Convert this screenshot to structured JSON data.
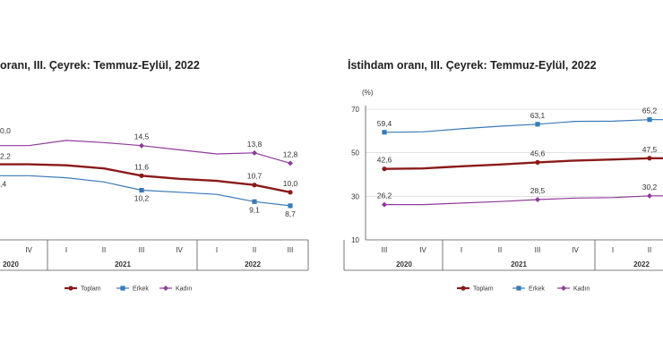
{
  "charts": [
    {
      "title": "oranı, III. Çeyrek: Temmuz-Eylül, 2022",
      "chart_data": {
        "type": "line",
        "categories": [
          "IV",
          "I",
          "II",
          "III",
          "IV",
          "I",
          "II",
          "III"
        ],
        "year_labels": [
          "2020",
          "2021",
          "2022"
        ],
        "series": [
          {
            "name": "Toplam",
            "color": "#8b1a1a",
            "values": [
              12.7,
              12.6,
              12.3,
              11.6,
              11.3,
              11.1,
              10.7,
              10.0
            ],
            "labels": [
              "",
              "",
              "",
              "11,6",
              "",
              "",
              "10,7",
              "10,0"
            ]
          },
          {
            "name": "Erkek",
            "color": "#3a7ab8",
            "values": [
              11.6,
              11.4,
              11.0,
              10.2,
              10.0,
              9.8,
              9.1,
              8.7
            ],
            "labels": [
              "",
              "",
              "",
              "10,2",
              "",
              "",
              "9,1",
              "8,7"
            ]
          },
          {
            "name": "Kadın",
            "color": "#8e3a9a",
            "values": [
              14.5,
              15.0,
              14.8,
              14.5,
              14.1,
              13.7,
              13.8,
              12.8
            ],
            "labels": [
              "",
              "",
              "",
              "14,5",
              "",
              "",
              "13,8",
              "12,8"
            ]
          }
        ],
        "edge_labels": [
          "0,0",
          "2,2",
          ",4"
        ]
      }
    },
    {
      "title": "İstihdam oranı, III. Çeyrek: Temmuz-Eylül, 2022",
      "chart_data": {
        "type": "line",
        "ylabel": "(%)",
        "yticks": [
          10,
          30,
          50,
          70
        ],
        "ylim": [
          10,
          70
        ],
        "categories": [
          "III",
          "IV",
          "I",
          "II",
          "III",
          "IV",
          "I",
          "II"
        ],
        "year_labels": [
          "2020",
          "2021",
          "2022"
        ],
        "series": [
          {
            "name": "Toplam",
            "color": "#8b1a1a",
            "values": [
              42.6,
              42.8,
              43.8,
              44.6,
              45.6,
              46.4,
              46.9,
              47.5
            ],
            "labels": [
              "42,6",
              "",
              "",
              "",
              "45,6",
              "",
              "",
              "47,5"
            ]
          },
          {
            "name": "Erkek",
            "color": "#3a7ab8",
            "values": [
              59.4,
              59.6,
              61.0,
              62.2,
              63.1,
              64.4,
              64.5,
              65.2
            ],
            "labels": [
              "59,4",
              "",
              "",
              "",
              "63,1",
              "",
              "",
              "65,2"
            ]
          },
          {
            "name": "Kadın",
            "color": "#8e3a9a",
            "values": [
              26.2,
              26.2,
              26.9,
              27.6,
              28.5,
              29.2,
              29.4,
              30.2
            ],
            "labels": [
              "26,2",
              "",
              "",
              "",
              "28,5",
              "",
              "",
              "30,2"
            ]
          }
        ]
      }
    }
  ]
}
